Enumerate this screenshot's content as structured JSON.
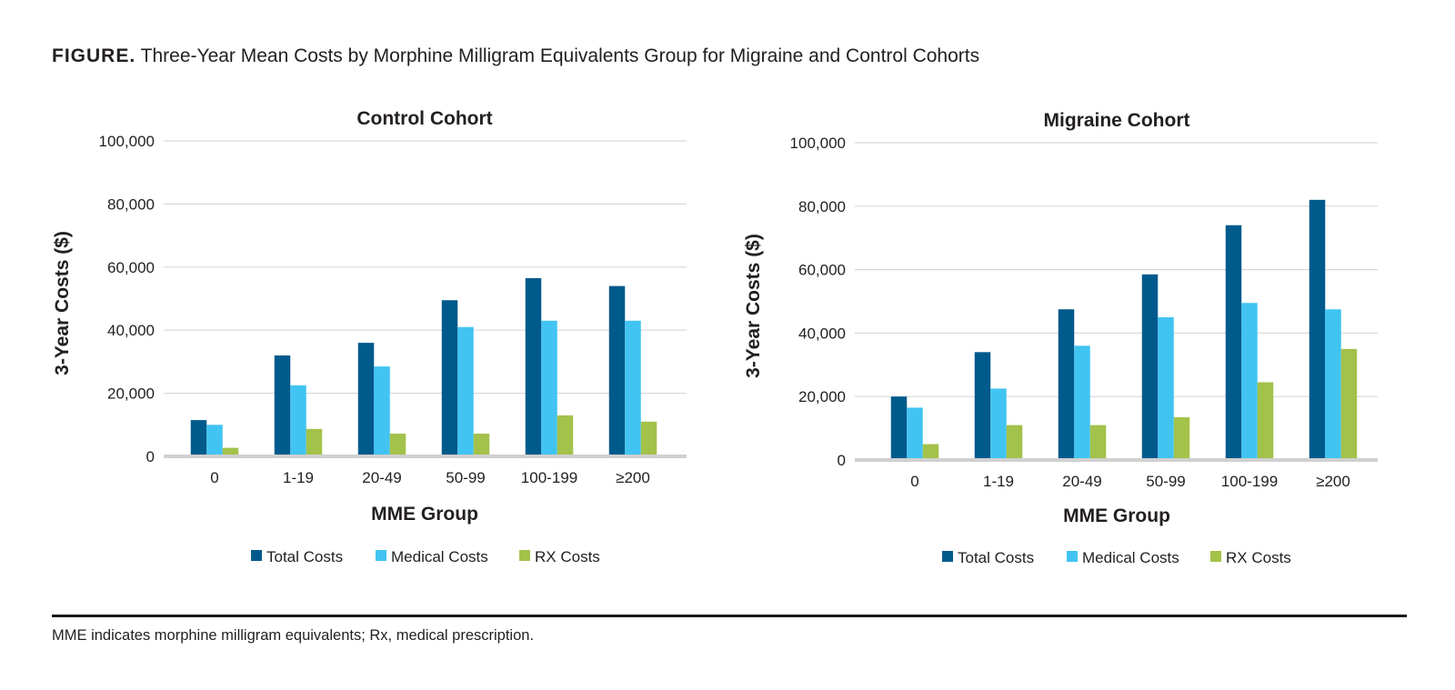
{
  "figure": {
    "label": "FIGURE.",
    "title": "Three-Year Mean Costs by Morphine Milligram Equivalents Group for Migraine and Control Cohorts",
    "footnote": "MME indicates morphine milligram equivalents; Rx, medical prescription."
  },
  "colors": {
    "total": "#005a8c",
    "medical": "#41c4f2",
    "rx": "#a3c24a",
    "axis": "#d0d0d0",
    "grid": "#d9d9d9"
  },
  "chart_data": [
    {
      "type": "bar",
      "title": "Control Cohort",
      "xlabel": "MME Group",
      "ylabel": "3-Year Costs ($)",
      "ylim": [
        0,
        100000
      ],
      "yticks": [
        "0",
        "20,000",
        "40,000",
        "60,000",
        "80,000",
        "100,000"
      ],
      "categories": [
        "0",
        "1-19",
        "20-49",
        "50-99",
        "100-199",
        "≥200"
      ],
      "series": [
        {
          "name": "Total Costs",
          "key": "total",
          "values": [
            11500,
            32000,
            36000,
            49500,
            56500,
            54000
          ]
        },
        {
          "name": "Medical Costs",
          "key": "medical",
          "values": [
            10000,
            22500,
            28500,
            41000,
            43000,
            43000
          ]
        },
        {
          "name": "RX Costs",
          "key": "rx",
          "values": [
            2700,
            8700,
            7200,
            7200,
            13000,
            11000
          ]
        }
      ]
    },
    {
      "type": "bar",
      "title": "Migraine Cohort",
      "xlabel": "MME Group",
      "ylabel": "3-Year Costs ($)",
      "ylim": [
        0,
        100000
      ],
      "yticks": [
        "0",
        "20,000",
        "40,000",
        "60,000",
        "80,000",
        "100,000"
      ],
      "categories": [
        "0",
        "1-19",
        "20-49",
        "50-99",
        "100-199",
        "≥200"
      ],
      "series": [
        {
          "name": "Total Costs",
          "key": "total",
          "values": [
            20000,
            34000,
            47500,
            58500,
            74000,
            82000
          ]
        },
        {
          "name": "Medical Costs",
          "key": "medical",
          "values": [
            16500,
            22500,
            36000,
            45000,
            49500,
            47500
          ]
        },
        {
          "name": "RX Costs",
          "key": "rx",
          "values": [
            5000,
            11000,
            11000,
            13500,
            24500,
            35000
          ]
        }
      ]
    }
  ]
}
